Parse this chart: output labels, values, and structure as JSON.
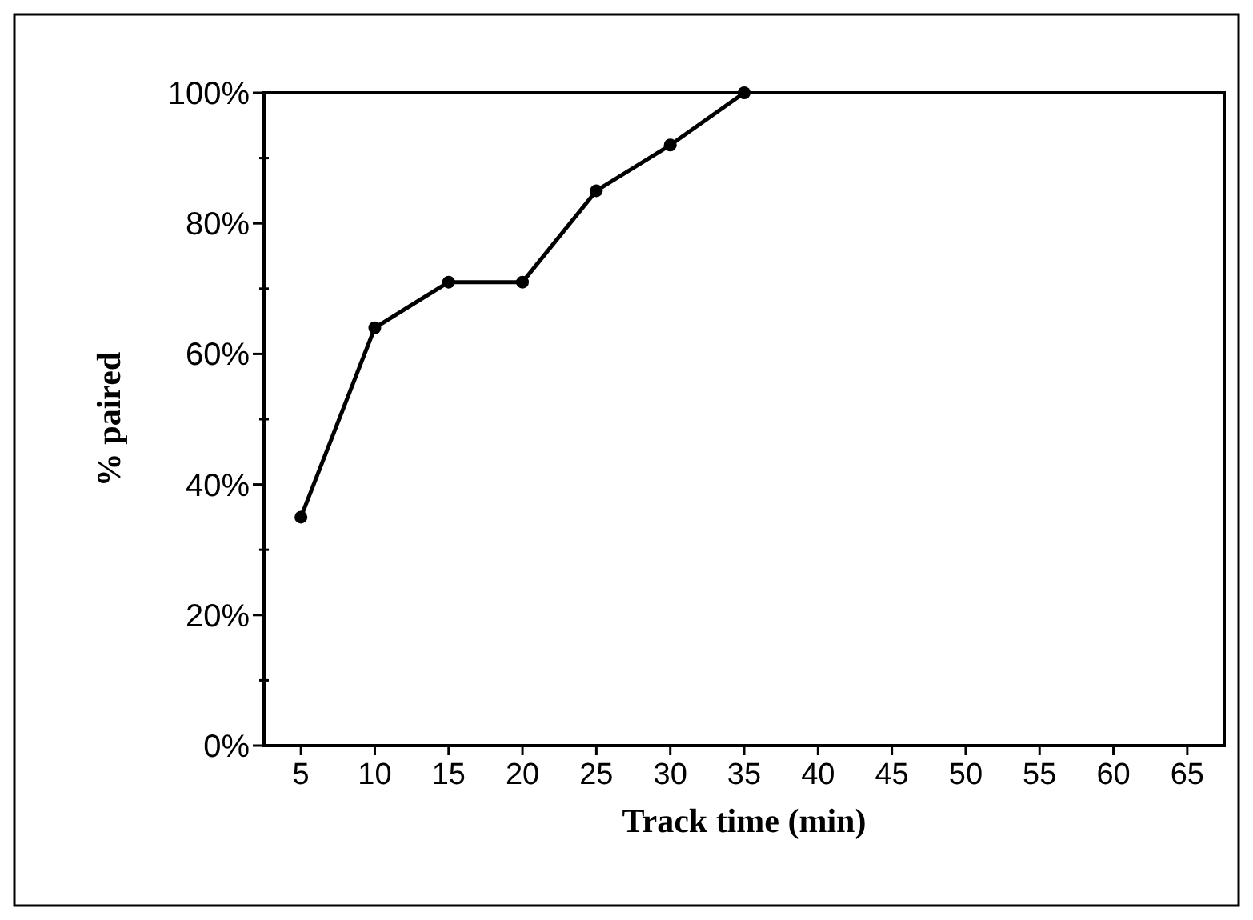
{
  "chart_data": {
    "type": "line",
    "xlabel": "Track time (min)",
    "ylabel": "% paired",
    "x": [
      5,
      10,
      15,
      20,
      25,
      30,
      35
    ],
    "series": [
      {
        "color": "#000000",
        "values": [
          35,
          64,
          71,
          71,
          85,
          92,
          100
        ]
      }
    ],
    "xlim": [
      2.5,
      67.5
    ],
    "xticks": [
      5,
      10,
      15,
      20,
      25,
      30,
      35,
      40,
      45,
      50,
      55,
      60,
      65
    ],
    "ylim": [
      0,
      100
    ],
    "yticks": [
      {
        "value": 0,
        "label": "0%"
      },
      {
        "value": 10,
        "label": null
      },
      {
        "value": 20,
        "label": "20%"
      },
      {
        "value": 30,
        "label": null
      },
      {
        "value": 40,
        "label": "40%"
      },
      {
        "value": 50,
        "label": null
      },
      {
        "value": 60,
        "label": "60%"
      },
      {
        "value": 70,
        "label": null
      },
      {
        "value": 80,
        "label": "80%"
      },
      {
        "value": 90,
        "label": null
      },
      {
        "value": 100,
        "label": "100%"
      }
    ],
    "marker": "circle",
    "line_style": "solid"
  }
}
